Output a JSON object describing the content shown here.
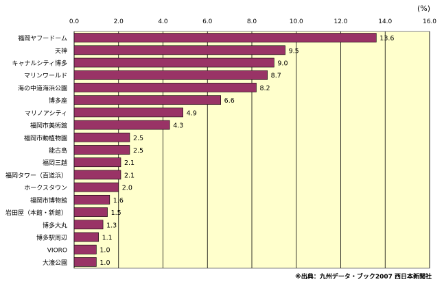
{
  "chart_data": {
    "type": "bar",
    "orientation": "horizontal",
    "unit_label": "(%)",
    "categories": [
      "福岡ヤフードーム",
      "天神",
      "キャナルシティ博多",
      "マリンワールド",
      "海の中道海浜公園",
      "博多座",
      "マリノアシティ",
      "福岡市美術館",
      "福岡市動植物園",
      "能古島",
      "福岡三越",
      "福岡タワー（百道浜）",
      "ホークスタウン",
      "福岡市博物館",
      "岩田屋（本館・新館）",
      "博多大丸",
      "博多駅周辺",
      "VIORO",
      "大濠公園"
    ],
    "values": [
      13.6,
      9.5,
      9.0,
      8.7,
      8.2,
      6.6,
      4.9,
      4.3,
      2.5,
      2.5,
      2.1,
      2.1,
      2.0,
      1.6,
      1.5,
      1.3,
      1.1,
      1.0,
      1.0
    ],
    "value_labels": [
      "13.6",
      "9.5",
      "9.0",
      "8.7",
      "8.2",
      "6.6",
      "4.9",
      "4.3",
      "2.5",
      "2.5",
      "2.1",
      "2.1",
      "2.0",
      "1.6",
      "1.5",
      "1.3",
      "1.1",
      "1.0",
      "1.0"
    ],
    "xlim": [
      0,
      16
    ],
    "xticks": [
      "0.0",
      "2.0",
      "4.0",
      "6.0",
      "8.0",
      "10.0",
      "12.0",
      "14.0",
      "16.0"
    ],
    "grid": true,
    "colors": {
      "bar": "#993366",
      "plot_bg": "#ffffcc",
      "grid": "#000000"
    },
    "source": "※出典：九州データ・ブック2007  西日本新聞社"
  }
}
